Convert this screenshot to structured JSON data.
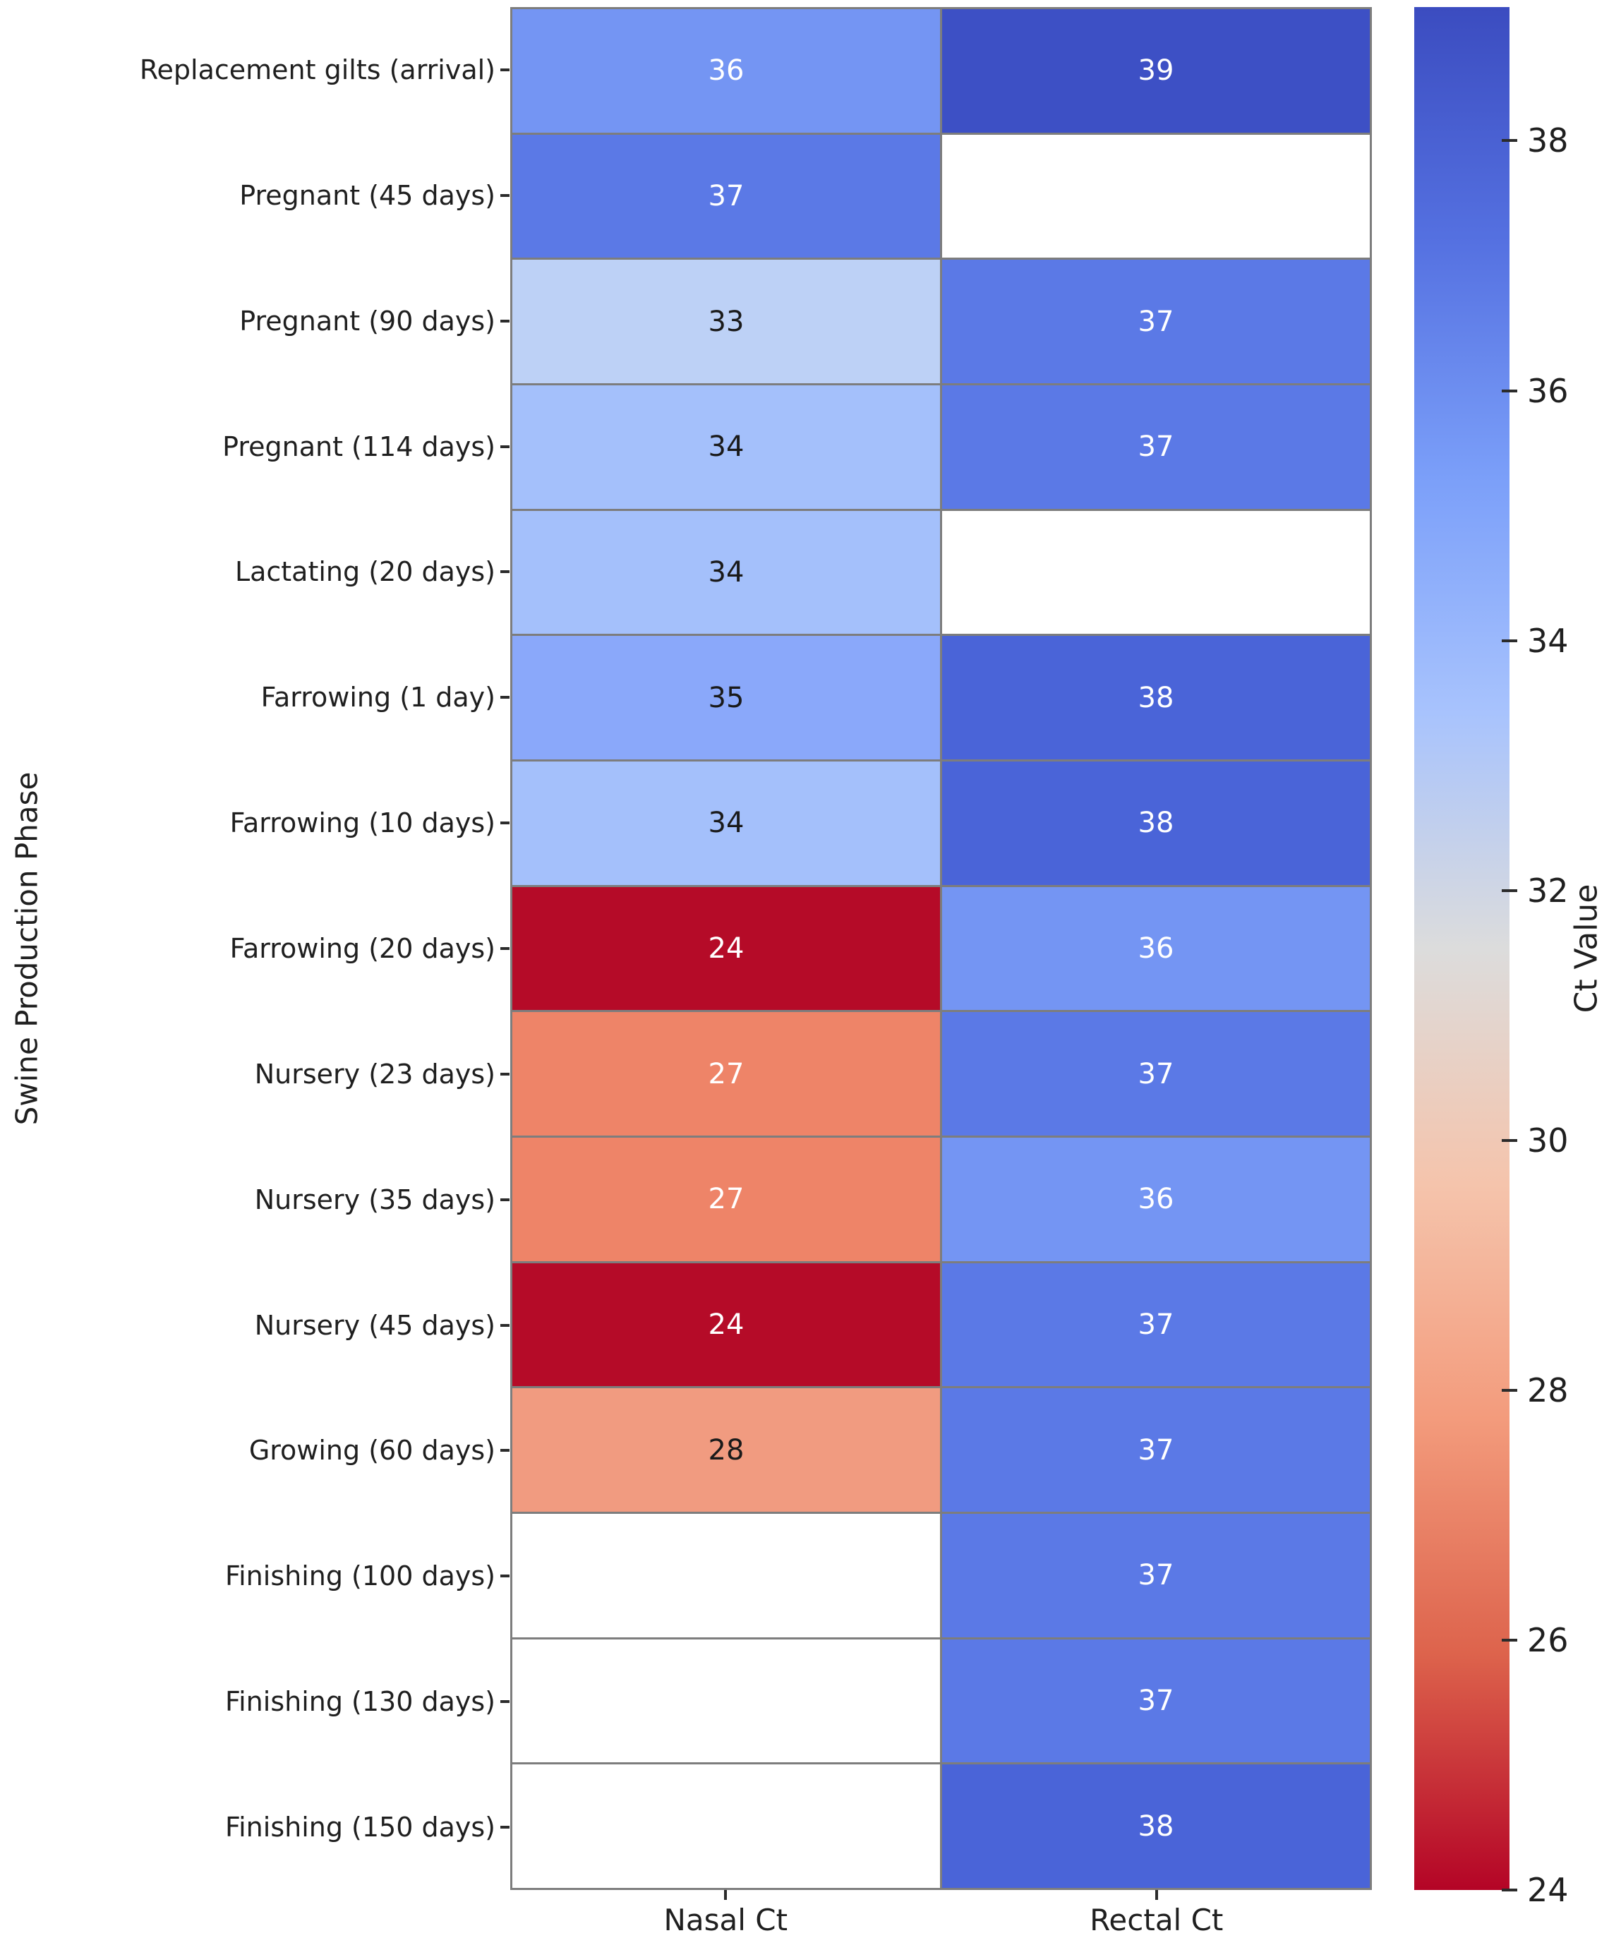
{
  "chart_data": {
    "type": "heatmap",
    "ylabel": "Swine Production Phase",
    "xlabel": "",
    "columns": [
      "Nasal Ct",
      "Rectal Ct"
    ],
    "rows": [
      {
        "label": "Replacement gilts (arrival)",
        "values": [
          36,
          39
        ]
      },
      {
        "label": "Pregnant (45 days)",
        "values": [
          37,
          null
        ]
      },
      {
        "label": "Pregnant (90 days)",
        "values": [
          33,
          37
        ]
      },
      {
        "label": "Pregnant (114 days)",
        "values": [
          34,
          37
        ]
      },
      {
        "label": "Lactating (20 days)",
        "values": [
          34,
          null
        ]
      },
      {
        "label": "Farrowing (1 day)",
        "values": [
          35,
          38
        ]
      },
      {
        "label": "Farrowing (10 days)",
        "values": [
          34,
          38
        ]
      },
      {
        "label": "Farrowing (20 days)",
        "values": [
          24,
          36
        ]
      },
      {
        "label": "Nursery (23 days)",
        "values": [
          27,
          37
        ]
      },
      {
        "label": "Nursery (35 days)",
        "values": [
          27,
          36
        ]
      },
      {
        "label": "Nursery (45 days)",
        "values": [
          24,
          37
        ]
      },
      {
        "label": "Growing (60 days)",
        "values": [
          28,
          37
        ]
      },
      {
        "label": "Finishing (100 days)",
        "values": [
          null,
          37
        ]
      },
      {
        "label": "Finishing (130 days)",
        "values": [
          null,
          37
        ]
      },
      {
        "label": "Finishing (150 days)",
        "values": [
          null,
          38
        ]
      }
    ],
    "colorbar": {
      "label": "Ct Value",
      "ticks": [
        38,
        36,
        34,
        32,
        30,
        28,
        26,
        24
      ],
      "vmin": 24,
      "vmax": 39.07,
      "gradient_top_to_bottom": [
        "#3b4cc0",
        "#5571e1",
        "#7b9ff9",
        "#a8c3fd",
        "#dcdcdc",
        "#f5c4ac",
        "#f39b7c",
        "#dd634c",
        "#b40426"
      ]
    },
    "value_colors": {
      "24": "#b50b28",
      "27": "#ee8468",
      "28": "#f19b80",
      "33": "#bdd1f6",
      "34": "#a4c0fb",
      "35": "#8aa8fa",
      "36": "#7495f3",
      "37": "#5b79e6",
      "38": "#4a64d8",
      "39": "#3d50c5"
    },
    "missing_color": "#ffffff",
    "grid_line_color": "#7d7d7d",
    "annotation_light_text": "#ffffff",
    "annotation_dark_text": "#1a1a1a",
    "axis_text_color": "#1f1f1f"
  }
}
